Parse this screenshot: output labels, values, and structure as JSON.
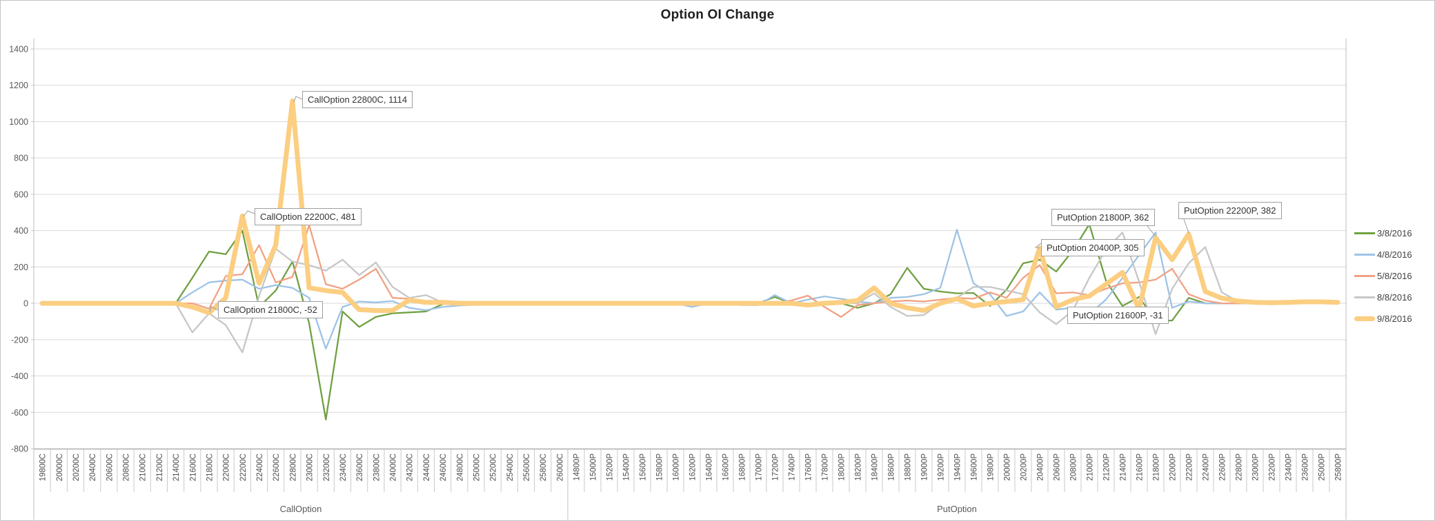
{
  "title": "Option OI Change",
  "legend": {
    "entries": [
      {
        "label": "3/8/2016",
        "color": "#70A041",
        "thick": false
      },
      {
        "label": "4/8/2016",
        "color": "#9DC3E6",
        "thick": false
      },
      {
        "label": "5/8/2016",
        "color": "#F1A183",
        "thick": false
      },
      {
        "label": "8/8/2016",
        "color": "#C6C6C6",
        "thick": false
      },
      {
        "label": "9/8/2016",
        "color": "#FBCE81",
        "thick": true
      }
    ]
  },
  "chart_data": {
    "type": "line",
    "title": "Option OI Change",
    "ylim": [
      -800,
      1400
    ],
    "yticks": [
      1400,
      1200,
      1000,
      800,
      600,
      400,
      200,
      0,
      -200,
      -400,
      -600,
      -800
    ],
    "grid": true,
    "legend_position": "right",
    "x_groups": [
      {
        "label": "CallOption",
        "categories": [
          "19800C",
          "20000C",
          "20200C",
          "20400C",
          "20600C",
          "20800C",
          "21000C",
          "21200C",
          "21400C",
          "21600C",
          "21800C",
          "22000C",
          "22200C",
          "22400C",
          "22600C",
          "22800C",
          "23000C",
          "23200C",
          "23400C",
          "23600C",
          "23800C",
          "24000C",
          "24200C",
          "24400C",
          "24600C",
          "24800C",
          "25000C",
          "25200C",
          "25400C",
          "25600C",
          "25800C",
          "26000C"
        ]
      },
      {
        "label": "PutOption",
        "categories": [
          "14800P",
          "15000P",
          "15200P",
          "15400P",
          "15600P",
          "15800P",
          "16000P",
          "16200P",
          "16400P",
          "16600P",
          "16800P",
          "17000P",
          "17200P",
          "17400P",
          "17600P",
          "17800P",
          "18000P",
          "18200P",
          "18400P",
          "18600P",
          "18800P",
          "19000P",
          "19200P",
          "19400P",
          "19600P",
          "19800P",
          "20000P",
          "20200P",
          "20400P",
          "20600P",
          "20800P",
          "21000P",
          "21200P",
          "21400P",
          "21600P",
          "21800P",
          "22000P",
          "22200P",
          "22400P",
          "22600P",
          "22800P",
          "23000P",
          "23200P",
          "23400P",
          "23600P",
          "25000P",
          "25800P"
        ]
      }
    ],
    "series": [
      {
        "name": "3/8/2016",
        "color": "#70A041",
        "width": 2.3,
        "values": [
          0,
          0,
          0,
          0,
          0,
          0,
          0,
          0,
          0,
          140,
          285,
          270,
          400,
          -20,
          70,
          230,
          -110,
          -640,
          -45,
          -130,
          -75,
          -55,
          -50,
          -45,
          -5,
          0,
          0,
          0,
          0,
          0,
          0,
          0,
          0,
          0,
          0,
          0,
          0,
          0,
          0,
          0,
          0,
          0,
          0,
          0,
          35,
          0,
          0,
          0,
          0,
          -25,
          0,
          50,
          195,
          80,
          65,
          55,
          57,
          -15,
          75,
          220,
          240,
          175,
          290,
          435,
          125,
          -15,
          35,
          -95,
          -95,
          30,
          0,
          0,
          0,
          0,
          0,
          0,
          0,
          0,
          0
        ]
      },
      {
        "name": "4/8/2016",
        "color": "#9DC3E6",
        "width": 2.3,
        "values": [
          0,
          0,
          0,
          0,
          0,
          0,
          0,
          0,
          0,
          60,
          115,
          125,
          130,
          80,
          100,
          85,
          30,
          -250,
          -20,
          10,
          5,
          12,
          -25,
          -38,
          -20,
          -12,
          -8,
          0,
          0,
          0,
          0,
          0,
          0,
          0,
          0,
          0,
          0,
          0,
          0,
          -20,
          0,
          0,
          -10,
          -10,
          45,
          0,
          20,
          38,
          25,
          10,
          0,
          30,
          35,
          50,
          85,
          405,
          110,
          50,
          -70,
          -45,
          60,
          -35,
          -25,
          -60,
          20,
          140,
          265,
          390,
          -25,
          10,
          0,
          0,
          0,
          0,
          0,
          0,
          0,
          0,
          0
        ]
      },
      {
        "name": "5/8/2016",
        "color": "#F1A183",
        "width": 2.3,
        "values": [
          0,
          0,
          0,
          0,
          0,
          0,
          0,
          0,
          0,
          0,
          -30,
          150,
          160,
          320,
          115,
          145,
          430,
          105,
          80,
          130,
          190,
          30,
          25,
          5,
          0,
          0,
          0,
          0,
          0,
          0,
          0,
          0,
          0,
          0,
          0,
          0,
          0,
          0,
          0,
          0,
          0,
          0,
          0,
          0,
          0,
          15,
          42,
          -20,
          -75,
          -10,
          0,
          10,
          15,
          10,
          20,
          30,
          25,
          60,
          30,
          140,
          210,
          55,
          60,
          45,
          80,
          110,
          115,
          130,
          190,
          50,
          15,
          0,
          0,
          0,
          0,
          0,
          0,
          0,
          0
        ]
      },
      {
        "name": "8/8/2016",
        "color": "#C6C6C6",
        "width": 2.3,
        "values": [
          0,
          0,
          0,
          0,
          0,
          0,
          0,
          0,
          0,
          -160,
          -55,
          -120,
          -270,
          40,
          300,
          230,
          210,
          180,
          240,
          155,
          225,
          90,
          30,
          45,
          5,
          0,
          0,
          0,
          0,
          0,
          0,
          0,
          0,
          0,
          0,
          0,
          0,
          0,
          0,
          0,
          0,
          0,
          0,
          0,
          0,
          0,
          0,
          0,
          0,
          0,
          55,
          -20,
          -70,
          -65,
          0,
          30,
          90,
          90,
          70,
          50,
          -50,
          -115,
          -40,
          140,
          295,
          390,
          120,
          -170,
          80,
          220,
          310,
          60,
          10,
          0,
          0,
          0,
          0,
          0,
          0
        ]
      },
      {
        "name": "9/8/2016",
        "color": "#FBCE81",
        "width": 7,
        "values": [
          0,
          0,
          0,
          0,
          0,
          0,
          0,
          0,
          0,
          -20,
          -52,
          30,
          481,
          110,
          320,
          1114,
          85,
          70,
          60,
          -35,
          -40,
          -40,
          18,
          5,
          5,
          0,
          0,
          0,
          0,
          0,
          0,
          0,
          0,
          0,
          0,
          0,
          0,
          0,
          0,
          0,
          0,
          0,
          0,
          0,
          0,
          0,
          -10,
          0,
          5,
          15,
          85,
          0,
          -25,
          -40,
          0,
          25,
          -15,
          0,
          10,
          20,
          305,
          -20,
          20,
          40,
          105,
          170,
          -31,
          362,
          240,
          382,
          65,
          28,
          12,
          5,
          3,
          5,
          8,
          8,
          5
        ]
      }
    ],
    "annotations": [
      {
        "text": "CallOption 21800C, -52",
        "category": "21800C",
        "value": -52
      },
      {
        "text": "CallOption 22200C, 481",
        "category": "22200C",
        "value": 481
      },
      {
        "text": "CallOption 22800C, 1114",
        "category": "22800C",
        "value": 1114
      },
      {
        "text": "PutOption 20400P, 305",
        "category": "20400P",
        "value": 305
      },
      {
        "text": "PutOption 21600P, -31",
        "category": "21600P",
        "value": -31
      },
      {
        "text": "PutOption 21800P, 362",
        "category": "21800P",
        "value": 362
      },
      {
        "text": "PutOption 22200P, 382",
        "category": "22200P",
        "value": 382
      }
    ]
  }
}
